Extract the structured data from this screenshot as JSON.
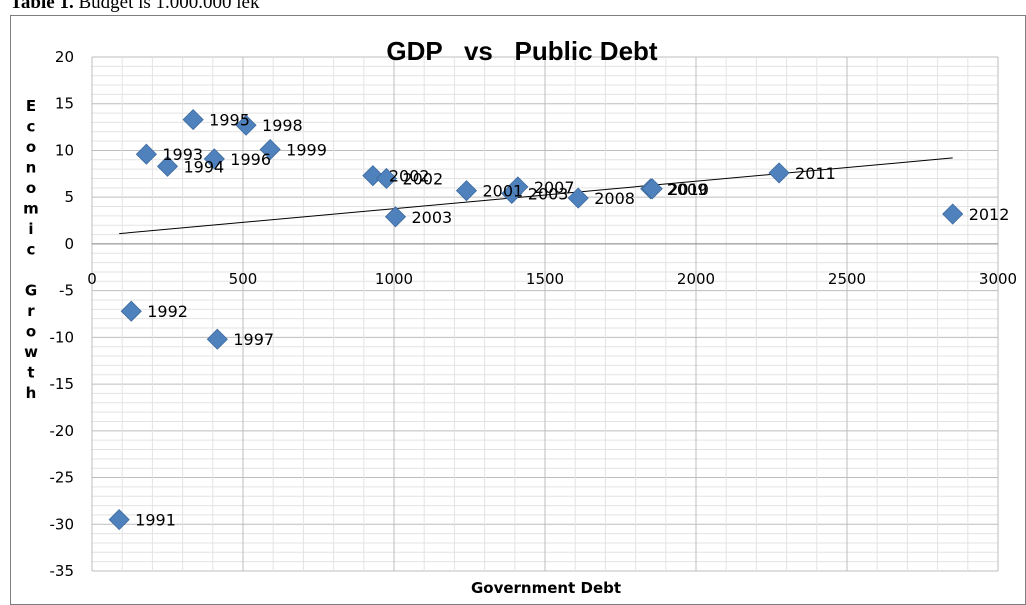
{
  "caption": {
    "bold": "Table 1.",
    "text": " Budget is 1.000.000 lek"
  },
  "chart_data": {
    "type": "scatter",
    "title": "GDP   vs   Public Debt",
    "xlabel": "Government Debt",
    "ylabel": "Economic Growth",
    "xlim": [
      0,
      3000
    ],
    "ylim": [
      -35,
      20
    ],
    "xticks": [
      0,
      500,
      1000,
      1500,
      2000,
      2500,
      3000
    ],
    "yticks": [
      20,
      15,
      10,
      5,
      0,
      -5,
      -10,
      -15,
      -20,
      -25,
      -30,
      -35
    ],
    "grid": true,
    "marker_color": "#4f81bd",
    "points": [
      {
        "x": 90,
        "y": -29.5,
        "label": "1991"
      },
      {
        "x": 130,
        "y": -7.2,
        "label": "1992"
      },
      {
        "x": 180,
        "y": 9.6,
        "label": "1993"
      },
      {
        "x": 250,
        "y": 8.3,
        "label": "1994"
      },
      {
        "x": 335,
        "y": 13.3,
        "label": "1995"
      },
      {
        "x": 405,
        "y": 9.1,
        "label": "1996"
      },
      {
        "x": 415,
        "y": -10.2,
        "label": "1997"
      },
      {
        "x": 510,
        "y": 12.7,
        "label": "1998"
      },
      {
        "x": 590,
        "y": 10.1,
        "label": "1999"
      },
      {
        "x": 930,
        "y": 7.3,
        "label": "2002"
      },
      {
        "x": 975,
        "y": 7.0,
        "label": "2002"
      },
      {
        "x": 1005,
        "y": 2.9,
        "label": "2003"
      },
      {
        "x": 1240,
        "y": 5.7,
        "label": "2001"
      },
      {
        "x": 1390,
        "y": 5.4,
        "label": "2003"
      },
      {
        "x": 1410,
        "y": 6.1,
        "label": "2007"
      },
      {
        "x": 1610,
        "y": 4.9,
        "label": "2008"
      },
      {
        "x": 1850,
        "y": 5.9,
        "label": "2009"
      },
      {
        "x": 1855,
        "y": 5.9,
        "label": "2010"
      },
      {
        "x": 2275,
        "y": 7.6,
        "label": "2011"
      },
      {
        "x": 2850,
        "y": 3.2,
        "label": "2012"
      }
    ],
    "trendline": {
      "type": "linear",
      "from": {
        "x": 90,
        "y": 1.1
      },
      "to": {
        "x": 2850,
        "y": 9.2
      }
    }
  }
}
